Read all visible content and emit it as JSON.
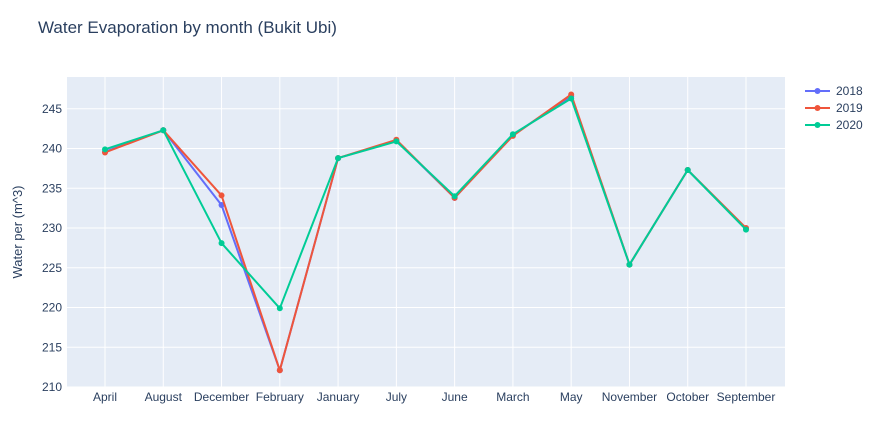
{
  "chart_data": {
    "type": "line",
    "title": "Water Evaporation by month (Bukit Ubi)",
    "xlabel": "",
    "ylabel": "Water per (m^3)",
    "categories": [
      "April",
      "August",
      "December",
      "February",
      "January",
      "July",
      "June",
      "March",
      "May",
      "November",
      "October",
      "September"
    ],
    "ylim": [
      210,
      249
    ],
    "yticks": [
      210,
      215,
      220,
      225,
      230,
      235,
      240,
      245
    ],
    "grid": true,
    "legend_position": "top-right",
    "series": [
      {
        "name": "2018",
        "color": "#636efa",
        "values": [
          239.6,
          242.3,
          232.9,
          212.1,
          238.8,
          241.0,
          233.8,
          241.7,
          246.6,
          225.4,
          237.3,
          229.9
        ]
      },
      {
        "name": "2019",
        "color": "#ef553b",
        "values": [
          239.5,
          242.3,
          234.1,
          212.1,
          238.8,
          241.1,
          233.8,
          241.6,
          246.8,
          225.4,
          237.3,
          230.0
        ]
      },
      {
        "name": "2020",
        "color": "#00cc96",
        "values": [
          239.9,
          242.3,
          228.1,
          219.9,
          238.8,
          240.9,
          234.0,
          241.8,
          246.3,
          225.4,
          237.3,
          229.8
        ]
      }
    ]
  }
}
